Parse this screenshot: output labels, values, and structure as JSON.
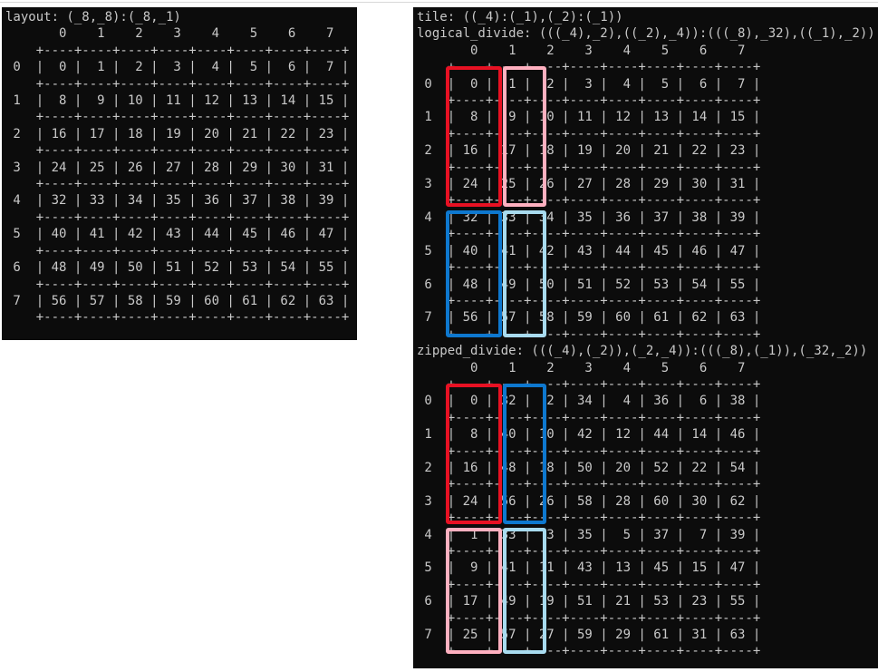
{
  "page": {
    "bg": "#ffffff",
    "top_rule_color": "#d9d9d9"
  },
  "terminal": {
    "bg": "#0c0c0c",
    "fg": "#c9c9c9"
  },
  "highlight_colors": {
    "red": "#e81123",
    "pink": "#ffb0c0",
    "blue": "#0e78cf",
    "light_blue": "#a8dbef"
  },
  "left_panel": {
    "titles": [
      "layout: (_8,_8):(_8,_1)"
    ],
    "col_labels": [
      "0",
      "1",
      "2",
      "3",
      "4",
      "5",
      "6",
      "7"
    ],
    "row_labels": [
      "0",
      "1",
      "2",
      "3",
      "4",
      "5",
      "6",
      "7"
    ],
    "matrix": [
      [
        0,
        1,
        2,
        3,
        4,
        5,
        6,
        7
      ],
      [
        8,
        9,
        10,
        11,
        12,
        13,
        14,
        15
      ],
      [
        16,
        17,
        18,
        19,
        20,
        21,
        22,
        23
      ],
      [
        24,
        25,
        26,
        27,
        28,
        29,
        30,
        31
      ],
      [
        32,
        33,
        34,
        35,
        36,
        37,
        38,
        39
      ],
      [
        40,
        41,
        42,
        43,
        44,
        45,
        46,
        47
      ],
      [
        48,
        49,
        50,
        51,
        52,
        53,
        54,
        55
      ],
      [
        56,
        57,
        58,
        59,
        60,
        61,
        62,
        63
      ]
    ],
    "highlights": []
  },
  "right_panel": {
    "sections": [
      {
        "titles": [
          "tile: ((_4):(_1),(_2):(_1))",
          "logical_divide: (((_4),_2),((_2),_4)):(((_8),_32),((_1),_2))"
        ],
        "col_labels": [
          "0",
          "1",
          "2",
          "3",
          "4",
          "5",
          "6",
          "7"
        ],
        "row_labels": [
          "0",
          "1",
          "2",
          "3",
          "4",
          "5",
          "6",
          "7"
        ],
        "matrix": [
          [
            0,
            1,
            2,
            3,
            4,
            5,
            6,
            7
          ],
          [
            8,
            9,
            10,
            11,
            12,
            13,
            14,
            15
          ],
          [
            16,
            17,
            18,
            19,
            20,
            21,
            22,
            23
          ],
          [
            24,
            25,
            26,
            27,
            28,
            29,
            30,
            31
          ],
          [
            32,
            33,
            34,
            35,
            36,
            37,
            38,
            39
          ],
          [
            40,
            41,
            42,
            43,
            44,
            45,
            46,
            47
          ],
          [
            48,
            49,
            50,
            51,
            52,
            53,
            54,
            55
          ],
          [
            56,
            57,
            58,
            59,
            60,
            61,
            62,
            63
          ]
        ],
        "highlights": [
          {
            "color": "red",
            "col": 0,
            "row_start": 0,
            "row_end": 3
          },
          {
            "color": "pink",
            "col": 1,
            "row_start": 0,
            "row_end": 3
          },
          {
            "color": "blue",
            "col": 0,
            "row_start": 4,
            "row_end": 7
          },
          {
            "color": "light_blue",
            "col": 1,
            "row_start": 4,
            "row_end": 7
          }
        ]
      },
      {
        "titles": [
          "zipped_divide: (((_4),(_2)),(_2,_4)):(((_8),(_1)),(_32,_2))"
        ],
        "col_labels": [
          "0",
          "1",
          "2",
          "3",
          "4",
          "5",
          "6",
          "7"
        ],
        "row_labels": [
          "0",
          "1",
          "2",
          "3",
          "4",
          "5",
          "6",
          "7"
        ],
        "matrix": [
          [
            0,
            32,
            2,
            34,
            4,
            36,
            6,
            38
          ],
          [
            8,
            40,
            10,
            42,
            12,
            44,
            14,
            46
          ],
          [
            16,
            48,
            18,
            50,
            20,
            52,
            22,
            54
          ],
          [
            24,
            56,
            26,
            58,
            28,
            60,
            30,
            62
          ],
          [
            1,
            33,
            3,
            35,
            5,
            37,
            7,
            39
          ],
          [
            9,
            41,
            11,
            43,
            13,
            45,
            15,
            47
          ],
          [
            17,
            49,
            19,
            51,
            21,
            53,
            23,
            55
          ],
          [
            25,
            57,
            27,
            59,
            29,
            61,
            31,
            63
          ]
        ],
        "highlights": [
          {
            "color": "red",
            "col": 0,
            "row_start": 0,
            "row_end": 3
          },
          {
            "color": "blue",
            "col": 1,
            "row_start": 0,
            "row_end": 3
          },
          {
            "color": "pink",
            "col": 0,
            "row_start": 4,
            "row_end": 7
          },
          {
            "color": "light_blue",
            "col": 1,
            "row_start": 4,
            "row_end": 7
          }
        ]
      }
    ]
  }
}
